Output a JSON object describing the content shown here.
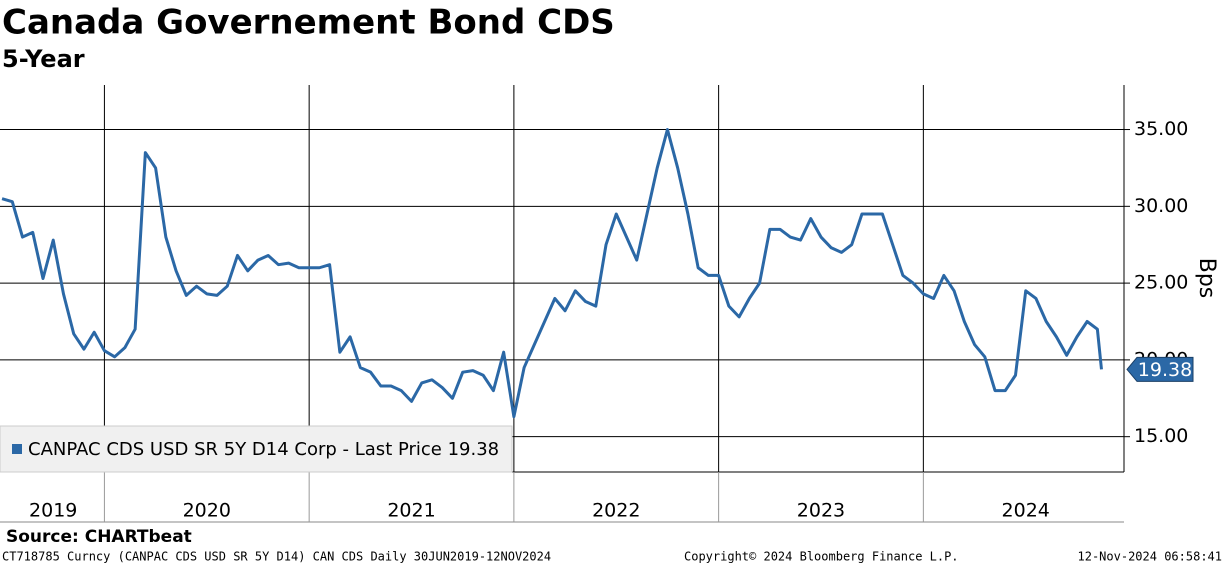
{
  "chart_data": {
    "type": "line",
    "title": "Canada Governement Bond CDS",
    "subtitle": "5-Year",
    "y_label": "Bps",
    "source": "Source: CHARTbeat",
    "footer_left": "CT718785 Curncy (CANPAC CDS USD SR 5Y D14) CAN CDS  Daily 30JUN2019-12NOV2024",
    "footer_center": "Copyright© 2024 Bloomberg Finance L.P.",
    "footer_right": "12-Nov-2024 06:58:41",
    "last_price_label": "19.38",
    "xlim": [
      2019.49,
      2024.98
    ],
    "xticks": [
      {
        "value": 2019.75,
        "label": "2019"
      },
      {
        "value": 2020.5,
        "label": "2020"
      },
      {
        "value": 2021.5,
        "label": "2021"
      },
      {
        "value": 2022.5,
        "label": "2022"
      },
      {
        "value": 2023.5,
        "label": "2023"
      },
      {
        "value": 2024.5,
        "label": "2024"
      }
    ],
    "xgrid": [
      2020,
      2021,
      2022,
      2023,
      2024
    ],
    "ylim": [
      12.7,
      37.9
    ],
    "yticks": [
      {
        "value": 15,
        "label": "15.00"
      },
      {
        "value": 20,
        "label": "20.00"
      },
      {
        "value": 25,
        "label": "25.00"
      },
      {
        "value": 30,
        "label": "30.00"
      },
      {
        "value": 35,
        "label": "35.00"
      }
    ],
    "grid": true,
    "x": [
      2019.5,
      2019.55,
      2019.6,
      2019.65,
      2019.7,
      2019.75,
      2019.8,
      2019.85,
      2019.9,
      2019.95,
      2020,
      2020.05,
      2020.1,
      2020.15,
      2020.2,
      2020.25,
      2020.3,
      2020.35,
      2020.4,
      2020.45,
      2020.5,
      2020.55,
      2020.6,
      2020.65,
      2020.7,
      2020.75,
      2020.8,
      2020.85,
      2020.9,
      2020.95,
      2021,
      2021.05,
      2021.1,
      2021.15,
      2021.2,
      2021.25,
      2021.3,
      2021.35,
      2021.4,
      2021.45,
      2021.5,
      2021.55,
      2021.6,
      2021.65,
      2021.7,
      2021.75,
      2021.8,
      2021.85,
      2021.9,
      2021.95,
      2022,
      2022.05,
      2022.1,
      2022.15,
      2022.2,
      2022.25,
      2022.3,
      2022.35,
      2022.4,
      2022.45,
      2022.5,
      2022.55,
      2022.6,
      2022.65,
      2022.7,
      2022.75,
      2022.8,
      2022.85,
      2022.9,
      2022.95,
      2023,
      2023.05,
      2023.1,
      2023.15,
      2023.2,
      2023.25,
      2023.3,
      2023.35,
      2023.4,
      2023.45,
      2023.5,
      2023.55,
      2023.6,
      2023.65,
      2023.7,
      2023.75,
      2023.8,
      2023.85,
      2023.9,
      2023.95,
      2024,
      2024.05,
      2024.1,
      2024.15,
      2024.2,
      2024.25,
      2024.3,
      2024.35,
      2024.4,
      2024.45,
      2024.5,
      2024.55,
      2024.6,
      2024.65,
      2024.7,
      2024.75,
      2024.8,
      2024.85,
      2024.87
    ],
    "series": [
      {
        "name": "CANPAC CDS USD SR 5Y D14 Corp - Last Price 19.38",
        "color": "#2b68a6",
        "values": [
          30.5,
          30.3,
          28,
          28.3,
          25.3,
          27.8,
          24.3,
          21.7,
          20.7,
          21.8,
          20.6,
          20.2,
          20.8,
          22,
          33.5,
          32.5,
          28,
          25.8,
          24.2,
          24.8,
          24.3,
          24.2,
          24.8,
          26.8,
          25.8,
          26.5,
          26.8,
          26.2,
          26.3,
          26,
          26,
          26,
          26.2,
          20.5,
          21.5,
          19.5,
          19.2,
          18.3,
          18.3,
          18.0,
          17.3,
          18.5,
          18.7,
          18.2,
          17.5,
          19.2,
          19.3,
          19.0,
          18.0,
          20.5,
          16.3,
          19.5,
          21,
          22.5,
          24,
          23.2,
          24.5,
          23.8,
          23.5,
          27.5,
          29.5,
          28,
          26.5,
          29.5,
          32.5,
          35,
          32.5,
          29.5,
          26,
          25.5,
          25.5,
          23.5,
          22.8,
          24,
          25,
          28.5,
          28.5,
          28,
          27.8,
          29.2,
          28,
          27.3,
          27,
          27.5,
          29.5,
          29.5,
          29.5,
          27.5,
          25.5,
          25,
          24.3,
          24,
          25.5,
          24.5,
          22.5,
          21,
          20.2,
          18,
          18,
          19,
          24.5,
          24,
          22.5,
          21.5,
          20.3,
          21.5,
          22.5,
          22,
          19.38
        ]
      }
    ]
  }
}
